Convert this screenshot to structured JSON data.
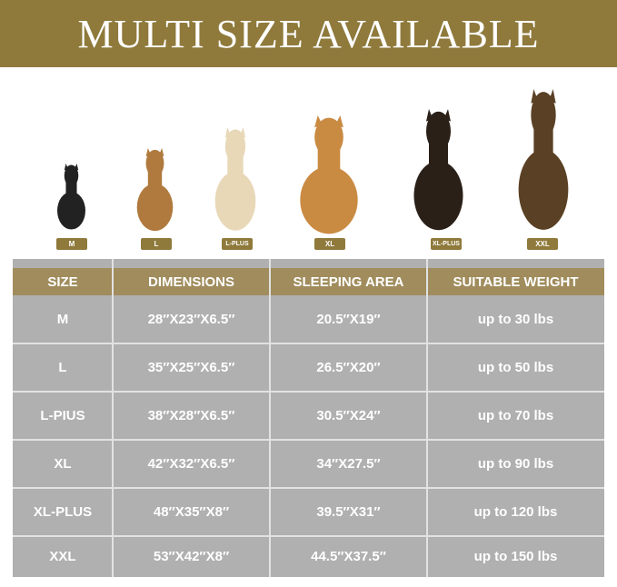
{
  "banner": {
    "title": "MULTI SIZE AVAILABLE"
  },
  "colors": {
    "gold": "#8f7a3c",
    "header": "#a08c5c",
    "table_bg": "#b0b0b0"
  },
  "dogs": [
    {
      "size_tag": "M",
      "image": "french-bulldog"
    },
    {
      "size_tag": "L",
      "image": "beagle"
    },
    {
      "size_tag": "L-PLUS",
      "image": "labrador"
    },
    {
      "size_tag": "XL",
      "image": "golden-retriever"
    },
    {
      "size_tag": "XL-PLUS",
      "image": "doberman"
    },
    {
      "size_tag": "XXL",
      "image": "german-shepherd"
    }
  ],
  "table": {
    "headers": [
      "SIZE",
      "DIMENSIONS",
      "SLEEPING AREA",
      "SUITABLE WEIGHT"
    ],
    "rows": [
      [
        "M",
        "28″X23″X6.5″",
        "20.5″X19″",
        "up to 30 lbs"
      ],
      [
        "L",
        "35″X25″X6.5″",
        "26.5″X20″",
        "up to 50 lbs"
      ],
      [
        "L-PIUS",
        "38″X28″X6.5″",
        "30.5″X24″",
        "up to 70 lbs"
      ],
      [
        "XL",
        "42″X32″X6.5″",
        "34″X27.5″",
        "up to 90 lbs"
      ],
      [
        "XL-PLUS",
        "48″X35″X8″",
        "39.5″X31″",
        "up to 120 lbs"
      ],
      [
        "XXL",
        "53″X42″X8″",
        "44.5″X37.5″",
        "up to 150 lbs"
      ]
    ]
  }
}
